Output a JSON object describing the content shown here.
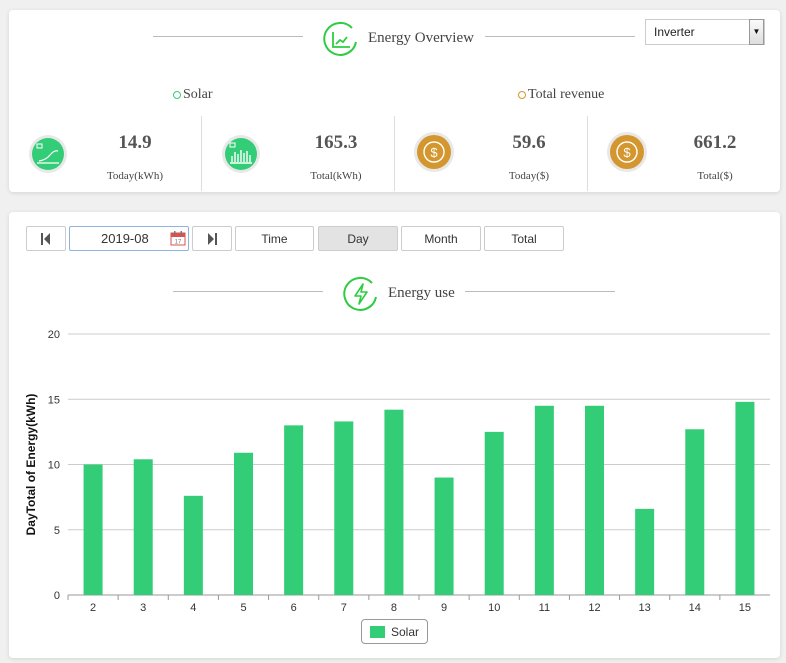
{
  "overview": {
    "title": "Energy Overview",
    "device_select": "Inverter",
    "solar_group": "Solar",
    "revenue_group": "Total revenue",
    "colors": {
      "solar": "#33cc77",
      "revenue": "#d4962e"
    },
    "stats": [
      {
        "value": "14.9",
        "label": "Today(kWh)",
        "icon": "solar-today-icon"
      },
      {
        "value": "165.3",
        "label": "Total(kWh)",
        "icon": "solar-total-icon"
      },
      {
        "value": "59.6",
        "label": "Today($)",
        "icon": "dollar-coin-icon"
      },
      {
        "value": "661.2",
        "label": "Total($)",
        "icon": "dollar-coin-icon"
      }
    ]
  },
  "toolbar": {
    "date_value": "2019-08",
    "buttons": [
      "Time",
      "Day",
      "Month",
      "Total"
    ],
    "active": "Day"
  },
  "energy_use": {
    "title": "Energy use"
  },
  "chart_data": {
    "type": "bar",
    "ylabel": "DayTotal of Energy(kWh)",
    "ylim": [
      0,
      20
    ],
    "yticks": [
      0,
      5,
      10,
      15,
      20
    ],
    "categories": [
      "2",
      "3",
      "4",
      "5",
      "6",
      "7",
      "8",
      "9",
      "10",
      "11",
      "12",
      "13",
      "14",
      "15"
    ],
    "series": [
      {
        "name": "Solar",
        "color": "#33cc77",
        "values": [
          10.0,
          10.4,
          7.6,
          10.9,
          13.0,
          13.3,
          14.2,
          9.0,
          12.5,
          14.5,
          14.5,
          6.6,
          12.7,
          14.8
        ]
      }
    ],
    "grid": true,
    "legend": "bottom-center"
  }
}
